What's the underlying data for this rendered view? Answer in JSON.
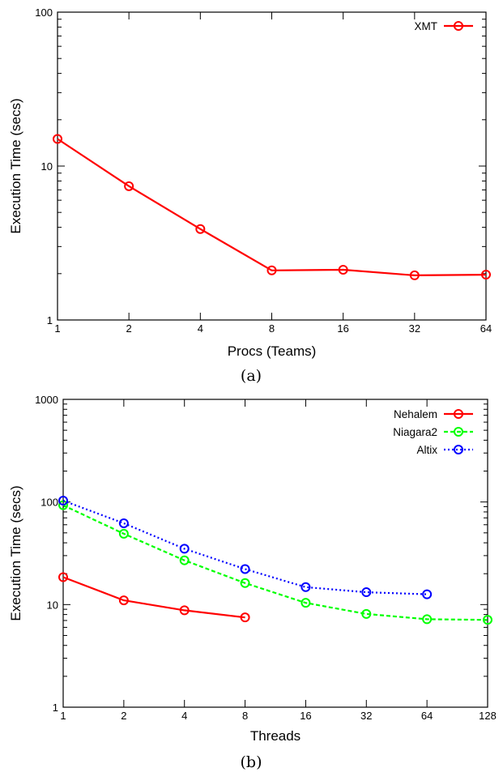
{
  "chart_data": [
    {
      "type": "line",
      "caption": "(a)",
      "xlabel": "Procs (Teams)",
      "ylabel": "Execution Time (secs)",
      "xscale": "log2",
      "yscale": "log",
      "x_ticks": [
        1,
        2,
        4,
        8,
        16,
        32,
        64
      ],
      "y_ticks": [
        1,
        10,
        100
      ],
      "xlim": [
        1,
        64
      ],
      "ylim": [
        1,
        100
      ],
      "legend_position": "top-right",
      "series": [
        {
          "name": "XMT",
          "color": "#ff0000",
          "dash": "solid",
          "x": [
            1,
            2,
            4,
            8,
            16,
            32,
            64
          ],
          "y": [
            15.0,
            7.4,
            3.9,
            2.1,
            2.12,
            1.95,
            1.97
          ]
        }
      ]
    },
    {
      "type": "line",
      "caption": "(b)",
      "xlabel": "Threads",
      "ylabel": "Execution Time (secs)",
      "xscale": "log2",
      "yscale": "log",
      "x_ticks": [
        1,
        2,
        4,
        8,
        16,
        32,
        64,
        128
      ],
      "y_ticks": [
        1,
        10,
        100,
        1000
      ],
      "xlim": [
        1,
        128
      ],
      "ylim": [
        1,
        1000
      ],
      "legend_position": "top-right",
      "series": [
        {
          "name": "Nehalem",
          "color": "#ff0000",
          "dash": "solid",
          "x": [
            1,
            2,
            4,
            8
          ],
          "y": [
            18.5,
            11.0,
            8.8,
            7.5
          ]
        },
        {
          "name": "Niagara2",
          "color": "#00ff00",
          "dash": "dashed",
          "x": [
            1,
            2,
            4,
            8,
            16,
            32,
            64,
            128
          ],
          "y": [
            93,
            49,
            27,
            16.2,
            10.4,
            8.1,
            7.2,
            7.1
          ]
        },
        {
          "name": "Altix",
          "color": "#0000ff",
          "dash": "dotted",
          "x": [
            1,
            2,
            4,
            8,
            16,
            32,
            64
          ],
          "y": [
            103,
            62,
            35,
            22.2,
            14.8,
            13.2,
            12.6
          ]
        }
      ]
    }
  ]
}
